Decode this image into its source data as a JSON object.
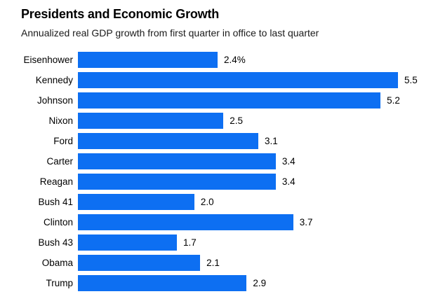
{
  "page": {
    "background": "#ffffff"
  },
  "header": {
    "title": "Presidents and Economic Growth",
    "subtitle": "Annualized real GDP growth from first quarter in office to last quarter"
  },
  "chart_data": {
    "type": "bar",
    "orientation": "horizontal",
    "title": "Presidents and Economic Growth",
    "subtitle": "Annualized real GDP growth from first quarter in office to last quarter",
    "categories": [
      "Eisenhower",
      "Kennedy",
      "Johnson",
      "Nixon",
      "Ford",
      "Carter",
      "Reagan",
      "Bush 41",
      "Clinton",
      "Bush 43",
      "Obama",
      "Trump"
    ],
    "values": [
      2.4,
      5.5,
      5.2,
      2.5,
      3.1,
      3.4,
      3.4,
      2.0,
      3.7,
      1.7,
      2.1,
      2.9
    ],
    "value_labels": [
      "2.4%",
      "5.5",
      "5.2",
      "2.5",
      "3.1",
      "3.4",
      "3.4",
      "2.0",
      "3.7",
      "1.7",
      "2.1",
      "2.9"
    ],
    "xlabel": "",
    "ylabel": "",
    "xlim": [
      0,
      5.5
    ],
    "grid": false,
    "legend": false,
    "bar_color": "#0d6ff2",
    "text_color": "#000000"
  }
}
